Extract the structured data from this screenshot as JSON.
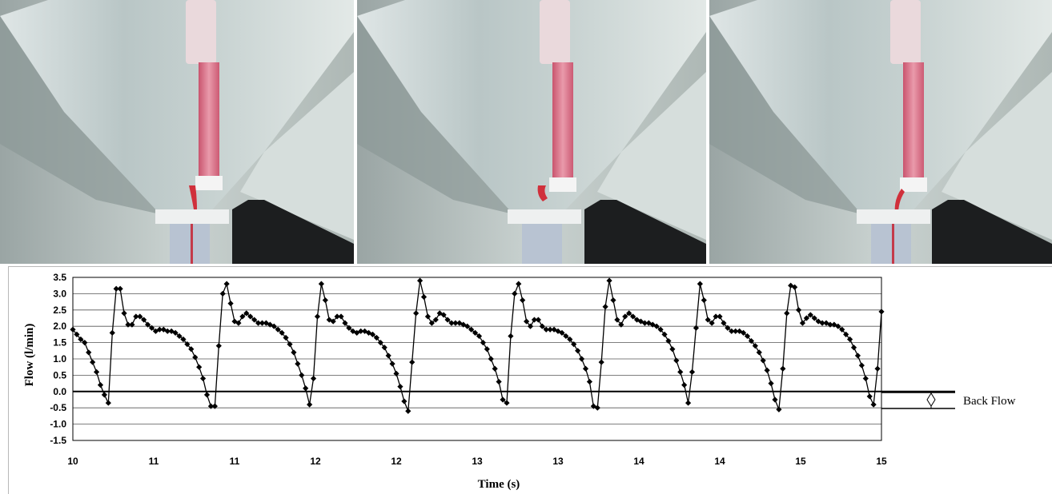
{
  "photos": [
    {
      "name": "frame-1"
    },
    {
      "name": "frame-2"
    },
    {
      "name": "frame-3"
    }
  ],
  "chart_data": {
    "type": "line",
    "title": "",
    "xlabel": "Time (s)",
    "ylabel": "Flow (l/min)",
    "x_tick_labels": [
      "10",
      "11",
      "11",
      "12",
      "12",
      "13",
      "13",
      "14",
      "14",
      "15",
      "15"
    ],
    "y_ticks": [
      3.5,
      3.0,
      2.5,
      2.0,
      1.5,
      1.0,
      0.5,
      0.0,
      -0.5,
      -1.0,
      -1.5
    ],
    "y_tick_labels": [
      "3.5",
      "3.0",
      "2.5",
      "2.0",
      "1.5",
      "1.0",
      "0.5",
      "0.0",
      "-0.5",
      "-1.0",
      "-1.5"
    ],
    "ylim": [
      -1.5,
      3.5
    ],
    "xlim": [
      10,
      15
    ],
    "grid": "horizontal",
    "marker": "diamond",
    "line_color": "#000000",
    "annotation": {
      "label": "Back Flow"
    },
    "series": [
      {
        "values": [
          1.9,
          1.75,
          1.6,
          1.5,
          1.2,
          0.9,
          0.6,
          0.2,
          -0.1,
          -0.35,
          1.8,
          3.15,
          3.15,
          2.4,
          2.05,
          2.05,
          2.3,
          2.3,
          2.2,
          2.05,
          1.95,
          1.85,
          1.9,
          1.9,
          1.85,
          1.85,
          1.8,
          1.7,
          1.6,
          1.45,
          1.3,
          1.05,
          0.75,
          0.4,
          -0.1,
          -0.45,
          -0.45,
          1.4,
          3.0,
          3.3,
          2.7,
          2.15,
          2.1,
          2.3,
          2.4,
          2.3,
          2.2,
          2.1,
          2.1,
          2.1,
          2.05,
          2.0,
          1.9,
          1.8,
          1.65,
          1.45,
          1.2,
          0.85,
          0.5,
          0.1,
          -0.4,
          0.4,
          2.3,
          3.3,
          2.8,
          2.2,
          2.15,
          2.3,
          2.3,
          2.1,
          1.95,
          1.85,
          1.8,
          1.85,
          1.85,
          1.8,
          1.75,
          1.65,
          1.5,
          1.35,
          1.1,
          0.85,
          0.55,
          0.15,
          -0.3,
          -0.6,
          0.9,
          2.4,
          3.4,
          2.9,
          2.3,
          2.1,
          2.2,
          2.4,
          2.35,
          2.2,
          2.1,
          2.1,
          2.1,
          2.05,
          2.0,
          1.9,
          1.8,
          1.7,
          1.5,
          1.3,
          1.0,
          0.7,
          0.3,
          -0.25,
          -0.35,
          1.7,
          3.0,
          3.3,
          2.8,
          2.15,
          2.0,
          2.2,
          2.2,
          2.0,
          1.9,
          1.9,
          1.9,
          1.85,
          1.8,
          1.7,
          1.6,
          1.45,
          1.25,
          1.0,
          0.7,
          0.3,
          -0.45,
          -0.5,
          0.9,
          2.6,
          3.4,
          2.8,
          2.2,
          2.05,
          2.3,
          2.4,
          2.3,
          2.2,
          2.15,
          2.1,
          2.1,
          2.05,
          2.0,
          1.9,
          1.75,
          1.55,
          1.3,
          0.95,
          0.6,
          0.2,
          -0.35,
          0.6,
          1.95,
          3.3,
          2.8,
          2.2,
          2.1,
          2.3,
          2.3,
          2.1,
          1.95,
          1.85,
          1.85,
          1.85,
          1.8,
          1.7,
          1.55,
          1.4,
          1.2,
          0.95,
          0.65,
          0.25,
          -0.25,
          -0.55,
          0.7,
          2.4,
          3.25,
          3.2,
          2.5,
          2.1,
          2.25,
          2.35,
          2.25,
          2.15,
          2.1,
          2.1,
          2.05,
          2.05,
          2.0,
          1.9,
          1.75,
          1.6,
          1.35,
          1.1,
          0.8,
          0.4,
          -0.15,
          -0.4,
          0.7,
          2.45
        ]
      }
    ]
  }
}
